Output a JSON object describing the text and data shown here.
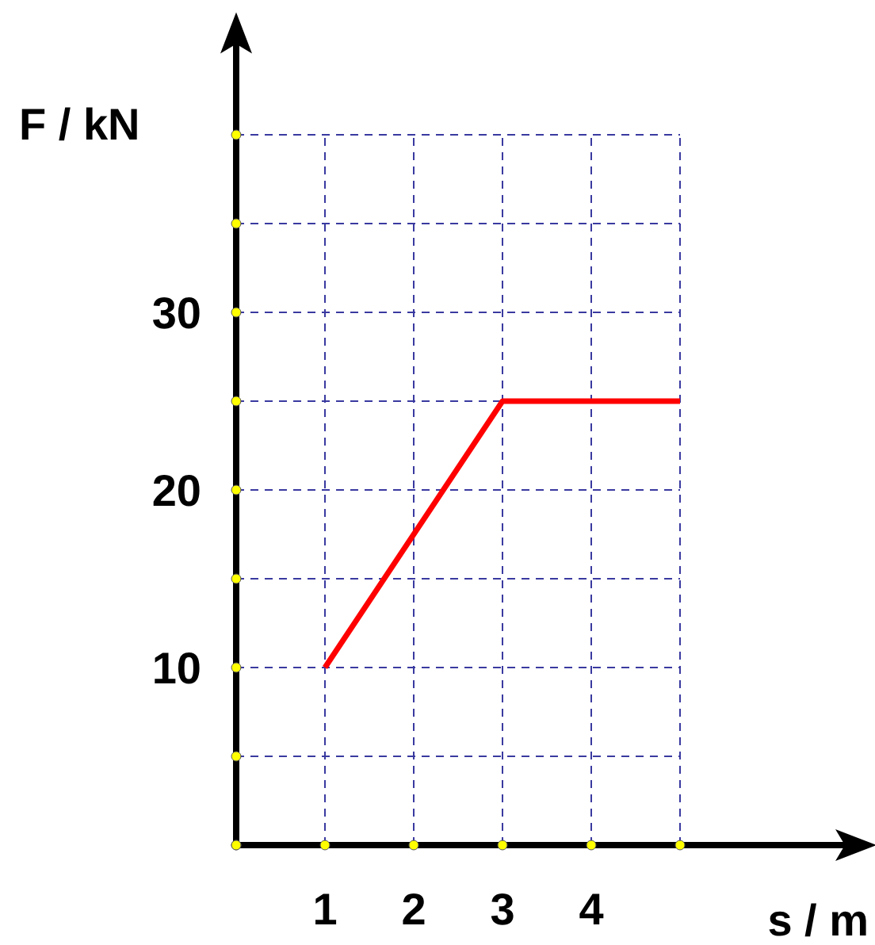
{
  "chart_data": {
    "type": "line",
    "xlabel": "s / m",
    "ylabel": "F / kN",
    "x": [
      1,
      3,
      5
    ],
    "series": [
      {
        "color": "#ff0000",
        "values": [
          10,
          25,
          25
        ]
      }
    ],
    "xlim": [
      0,
      7
    ],
    "ylim": [
      0,
      46
    ],
    "xticks": [
      {
        "value": 0,
        "label": null
      },
      1,
      2,
      3,
      4,
      {
        "value": 5,
        "label": null
      }
    ],
    "yticks": [
      {
        "value": 0,
        "label": null
      },
      {
        "value": 5,
        "label": null
      },
      10,
      {
        "value": 15,
        "label": null
      },
      20,
      {
        "value": 25,
        "label": null
      },
      30,
      {
        "value": 35,
        "label": null
      },
      {
        "value": 40,
        "label": null
      }
    ],
    "grid": true,
    "line_style": "solid",
    "marker": "none"
  }
}
